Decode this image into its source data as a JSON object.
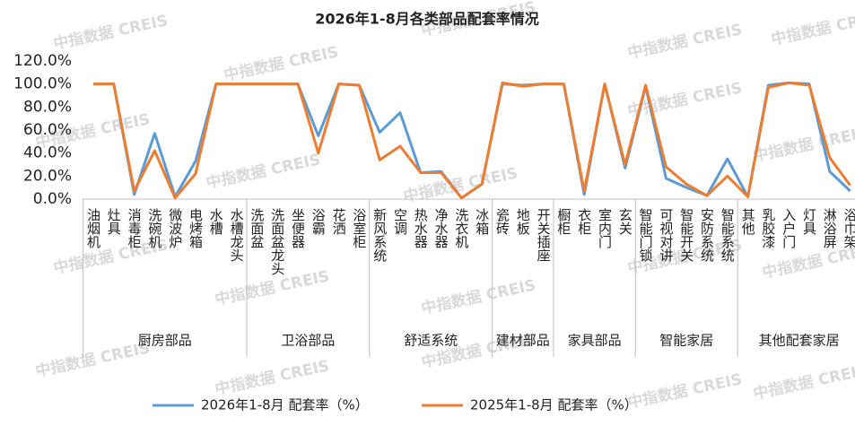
{
  "chart_data": {
    "type": "line",
    "title": "2026年1-8月各类部品配套率情况",
    "watermark": "中指数据 CREIS",
    "groups": [
      {
        "name": "厨房部品",
        "categories": [
          "油烟机",
          "灶具",
          "消毒柜",
          "洗碗机",
          "微波炉",
          "电烤箱",
          "水槽",
          "水槽龙头"
        ]
      },
      {
        "name": "卫浴部品",
        "categories": [
          "洗面盆",
          "洗面盆龙头",
          "坐便器",
          "浴霸",
          "花洒",
          "浴室柜"
        ]
      },
      {
        "name": "舒适系统",
        "categories": [
          "新风系统",
          "空调",
          "热水器",
          "净水器",
          "洗衣机",
          "冰箱"
        ]
      },
      {
        "name": "建材部品",
        "categories": [
          "瓷砖",
          "地板",
          "开关插座"
        ]
      },
      {
        "name": "家具部品",
        "categories": [
          "橱柜",
          "衣柜",
          "室内门",
          "玄关"
        ]
      },
      {
        "name": "智能家居",
        "categories": [
          "智能门锁",
          "可视对讲",
          "智能开关",
          "安防系统",
          "智能系统"
        ]
      },
      {
        "name": "其他配套家居",
        "categories": [
          "其他",
          "乳胶漆",
          "入户门",
          "灯具",
          "淋浴屏",
          "浴巾架"
        ]
      }
    ],
    "series": [
      {
        "name": "2026年1-8月 配套率（%）",
        "color": "#5b9bd5",
        "values": [
          100,
          100,
          4,
          57,
          2,
          33,
          100,
          100,
          100,
          100,
          100,
          55,
          100,
          99,
          58,
          75,
          23,
          24,
          1,
          13,
          100,
          99,
          100,
          100,
          4,
          100,
          27,
          98,
          18,
          10,
          3,
          35,
          2,
          99,
          101,
          100,
          24,
          7
        ]
      },
      {
        "name": "2025年1-8月 配套率（%）",
        "color": "#ed7d31",
        "values": [
          100,
          100,
          7,
          42,
          1,
          22,
          100,
          100,
          100,
          100,
          100,
          40,
          100,
          99,
          34,
          46,
          23,
          23,
          1,
          13,
          101,
          98,
          100,
          100,
          7,
          100,
          30,
          99,
          28,
          13,
          3,
          20,
          2,
          97,
          101,
          99,
          36,
          12
        ]
      }
    ],
    "ylim": [
      0,
      120
    ],
    "yticks": [
      {
        "value": 0,
        "label": "0.0%"
      },
      {
        "value": 20,
        "label": "20.0%"
      },
      {
        "value": 40,
        "label": "40.0%"
      },
      {
        "value": 60,
        "label": "60.0%"
      },
      {
        "value": 80,
        "label": "80.0%"
      },
      {
        "value": 100,
        "label": "100.0%"
      },
      {
        "value": 120,
        "label": "120.0%"
      }
    ],
    "grid": false,
    "legend": "bottom"
  }
}
